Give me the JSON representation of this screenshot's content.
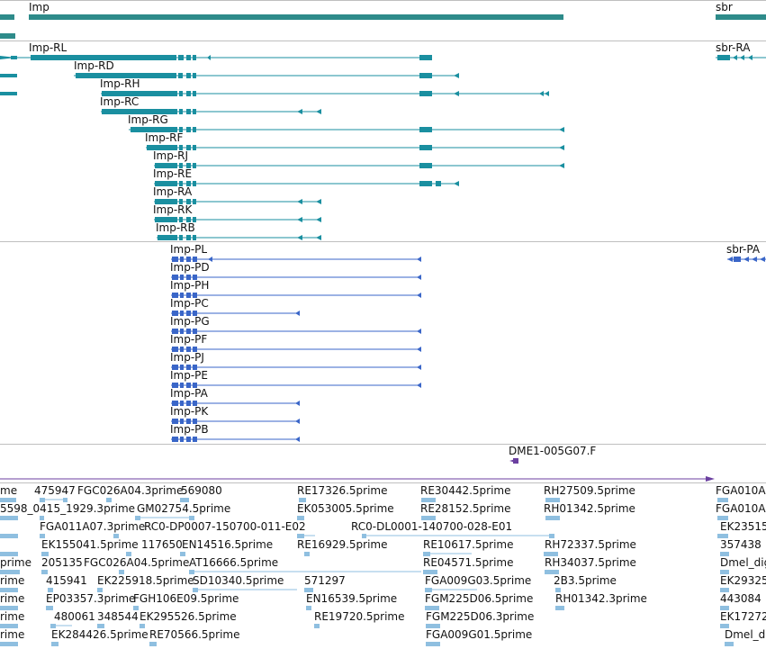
{
  "colors": {
    "gene": "#2e8b8a",
    "transcript": "#1a8fa0",
    "protein": "#3a66c8",
    "clone": "#6b3fa0",
    "est": "#8fbfe0",
    "separator": "#bfbfbf"
  },
  "tracks": {
    "gene": {
      "features": [
        {
          "label": "Imp"
        },
        {
          "label": "sbr"
        }
      ]
    },
    "transcripts": {
      "features": [
        {
          "label": "Imp-RL"
        },
        {
          "label": "Imp-RD"
        },
        {
          "label": "Imp-RH"
        },
        {
          "label": "Imp-RC"
        },
        {
          "label": "Imp-RG"
        },
        {
          "label": "Imp-RF"
        },
        {
          "label": "Imp-RJ"
        },
        {
          "label": "Imp-RE"
        },
        {
          "label": "Imp-RA"
        },
        {
          "label": "Imp-RK"
        },
        {
          "label": "Imp-RB"
        },
        {
          "label": "sbr-RA"
        }
      ]
    },
    "proteins": {
      "features": [
        {
          "label": "Imp-PL"
        },
        {
          "label": "Imp-PD"
        },
        {
          "label": "Imp-PH"
        },
        {
          "label": "Imp-PC"
        },
        {
          "label": "Imp-PG"
        },
        {
          "label": "Imp-PF"
        },
        {
          "label": "Imp-PJ"
        },
        {
          "label": "Imp-PE"
        },
        {
          "label": "Imp-PA"
        },
        {
          "label": "Imp-PK"
        },
        {
          "label": "Imp-PB"
        },
        {
          "label": "sbr-PA"
        }
      ]
    },
    "clones": {
      "features": [
        {
          "label": "DME1-005G07.F"
        }
      ]
    },
    "ests": {
      "features": [
        {
          "label": "me"
        },
        {
          "label": "475947"
        },
        {
          "label": "FGC026A04.3prime"
        },
        {
          "label": "569080"
        },
        {
          "label": "RE17326.5prime"
        },
        {
          "label": "RE30442.5prime"
        },
        {
          "label": "RH27509.5prime"
        },
        {
          "label": "FGA010A"
        },
        {
          "label": "5598_0415_1929.3prime"
        },
        {
          "label": "GM02754.5prime"
        },
        {
          "label": "EK053005.5prime"
        },
        {
          "label": "RE28152.5prime"
        },
        {
          "label": "RH01342.5prime"
        },
        {
          "label": "FGA010A"
        },
        {
          "label": "FGA011A07.3prime"
        },
        {
          "label": "RC0-DP0007-150700-011-E02"
        },
        {
          "label": "RC0-DL0001-140700-028-E01"
        },
        {
          "label": "EK23515"
        },
        {
          "label": "EK155041.5prime"
        },
        {
          "label": "117650"
        },
        {
          "label": "EN14516.5prime"
        },
        {
          "label": "RE16929.5prime"
        },
        {
          "label": "RE10617.5prime"
        },
        {
          "label": "RH72337.5prime"
        },
        {
          "label": "357438"
        },
        {
          "label": "prime"
        },
        {
          "label": "205135"
        },
        {
          "label": "FGC026A04.5prime"
        },
        {
          "label": "AT16666.5prime"
        },
        {
          "label": "RE04571.5prime"
        },
        {
          "label": "RH34037.5prime"
        },
        {
          "label": "Dmel_dig"
        },
        {
          "label": "rime"
        },
        {
          "label": "415941"
        },
        {
          "label": "EK225918.5prime"
        },
        {
          "label": "SD10340.5prime"
        },
        {
          "label": "571297"
        },
        {
          "label": "FGA009G03.5prime"
        },
        {
          "label": "2B3.5prime"
        },
        {
          "label": "EK29325"
        },
        {
          "label": "rime"
        },
        {
          "label": "EP03357.3prime"
        },
        {
          "label": "FGH106E09.5prime"
        },
        {
          "label": "EN16539.5prime"
        },
        {
          "label": "FGM225D06.5prime"
        },
        {
          "label": "RH01342.3prime"
        },
        {
          "label": "443084"
        },
        {
          "label": "rime"
        },
        {
          "label": "480061"
        },
        {
          "label": "348544"
        },
        {
          "label": "EK295526.5prime"
        },
        {
          "label": "RE19720.5prime"
        },
        {
          "label": "FGM225D06.3prime"
        },
        {
          "label": "EK17272"
        },
        {
          "label": "rime"
        },
        {
          "label": "EK284426.5prime"
        },
        {
          "label": "RE70566.5prime"
        },
        {
          "label": "FGA009G01.5prime"
        },
        {
          "label": "Dmel_dig"
        }
      ]
    }
  }
}
